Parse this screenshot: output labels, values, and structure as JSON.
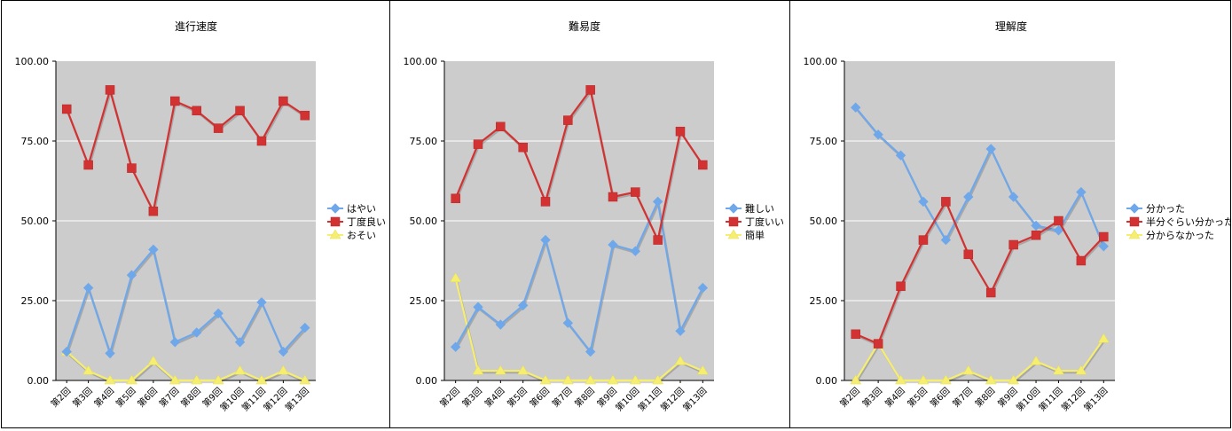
{
  "chart_data": [
    {
      "type": "line",
      "title": "進行速度",
      "categories": [
        "第2回",
        "第3回",
        "第4回",
        "第5回",
        "第6回",
        "第7回",
        "第8回",
        "第9回",
        "第10回",
        "第11回",
        "第12回",
        "第13回"
      ],
      "ylim": [
        0,
        100
      ],
      "yticks": [
        "0.00",
        "25.00",
        "50.00",
        "75.00",
        "100.00"
      ],
      "grid": true,
      "legend_position": "right",
      "series": [
        {
          "name": "はやい",
          "color": "#6fa8ea",
          "marker": "diamond",
          "values": [
            9.0,
            29.0,
            8.5,
            33.0,
            41.0,
            12.0,
            15.0,
            21.0,
            12.0,
            24.5,
            9.0,
            16.5
          ]
        },
        {
          "name": "丁度良い",
          "color": "#d23232",
          "marker": "square",
          "values": [
            85.0,
            67.5,
            91.0,
            66.5,
            53.0,
            87.5,
            84.5,
            79.0,
            84.5,
            75.0,
            87.5,
            83.0
          ]
        },
        {
          "name": "おそい",
          "color": "#f5ee70",
          "marker": "triangle",
          "values": [
            9.0,
            3.0,
            0.0,
            0.0,
            6.0,
            0.0,
            0.0,
            0.0,
            3.0,
            0.0,
            3.0,
            0.0
          ]
        }
      ]
    },
    {
      "type": "line",
      "title": "難易度",
      "categories": [
        "第2回",
        "第3回",
        "第4回",
        "第5回",
        "第6回",
        "第7回",
        "第8回",
        "第9回",
        "第10回",
        "第11回",
        "第12回",
        "第13回"
      ],
      "ylim": [
        0,
        100
      ],
      "yticks": [
        "0.00",
        "25.00",
        "50.00",
        "75.00",
        "100.00"
      ],
      "grid": true,
      "legend_position": "right",
      "series": [
        {
          "name": "難しい",
          "color": "#6fa8ea",
          "marker": "diamond",
          "values": [
            10.5,
            23.0,
            17.5,
            23.5,
            44.0,
            18.0,
            9.0,
            42.5,
            40.5,
            56.0,
            15.5,
            29.0
          ]
        },
        {
          "name": "丁度いい",
          "color": "#d23232",
          "marker": "square",
          "values": [
            57.0,
            74.0,
            79.5,
            73.0,
            56.0,
            81.5,
            91.0,
            57.5,
            59.0,
            44.0,
            78.0,
            67.5
          ]
        },
        {
          "name": "簡単",
          "color": "#f5ee70",
          "marker": "triangle",
          "values": [
            32.0,
            3.0,
            3.0,
            3.0,
            0.0,
            0.0,
            0.0,
            0.0,
            0.0,
            0.0,
            6.0,
            3.0
          ]
        }
      ]
    },
    {
      "type": "line",
      "title": "理解度",
      "categories": [
        "第2回",
        "第3回",
        "第4回",
        "第5回",
        "第6回",
        "第7回",
        "第8回",
        "第9回",
        "第10回",
        "第11回",
        "第12回",
        "第13回"
      ],
      "ylim": [
        0,
        100
      ],
      "yticks": [
        "0.00",
        "25.00",
        "50.00",
        "75.00",
        "100.00"
      ],
      "grid": true,
      "legend_position": "right",
      "series": [
        {
          "name": "分かった",
          "color": "#6fa8ea",
          "marker": "diamond",
          "values": [
            85.5,
            77.0,
            70.5,
            56.0,
            44.0,
            57.5,
            72.5,
            57.5,
            48.5,
            47.0,
            59.0,
            42.0
          ]
        },
        {
          "name": "半分ぐらい分かった",
          "color": "#d23232",
          "marker": "square",
          "values": [
            14.5,
            11.5,
            29.5,
            44.0,
            56.0,
            39.5,
            27.5,
            42.5,
            45.5,
            50.0,
            37.5,
            45.0
          ]
        },
        {
          "name": "分からなかった",
          "color": "#f5ee70",
          "marker": "triangle",
          "values": [
            0.0,
            11.5,
            0.0,
            0.0,
            0.0,
            3.0,
            0.0,
            0.0,
            6.0,
            3.0,
            3.0,
            13.0
          ]
        }
      ]
    }
  ]
}
